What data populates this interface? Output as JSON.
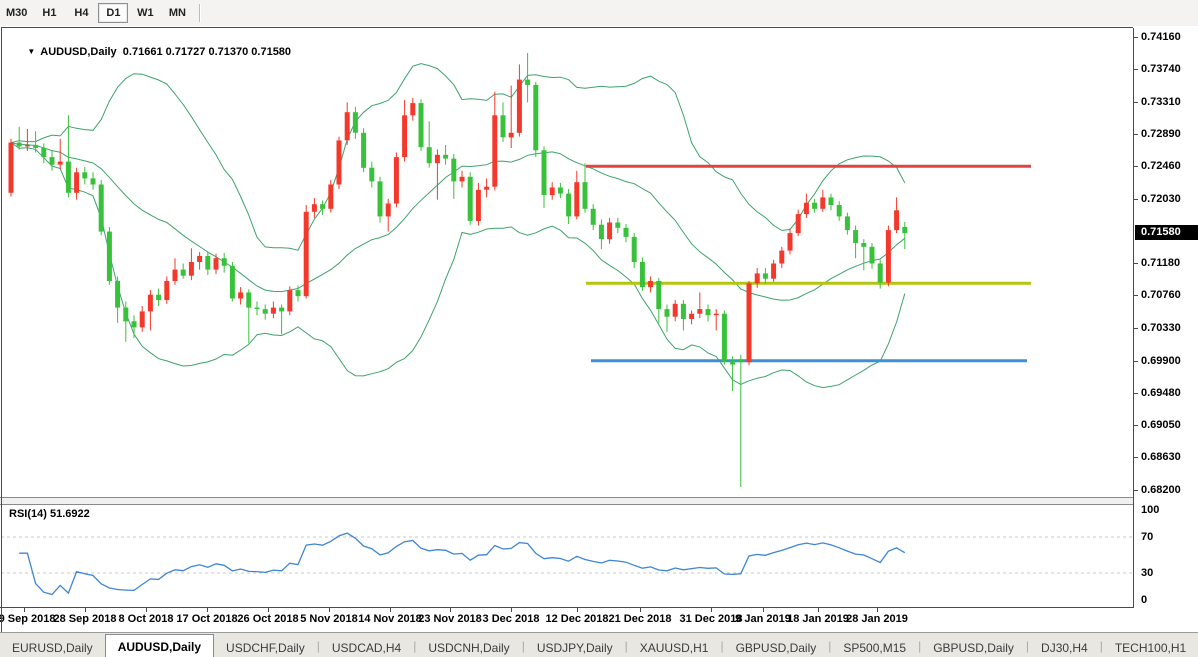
{
  "toolbar": {
    "timeframes": [
      {
        "label": "M30",
        "active": false
      },
      {
        "label": "H1",
        "active": false
      },
      {
        "label": "H4",
        "active": false
      },
      {
        "label": "D1",
        "active": true
      },
      {
        "label": "W1",
        "active": false
      },
      {
        "label": "MN",
        "active": false
      }
    ]
  },
  "symbol_line": {
    "dropdown_icon": "▼",
    "symbol": "AUDUSD,Daily",
    "open": "0.71661",
    "high": "0.71727",
    "low": "0.71370",
    "close": "0.71580"
  },
  "rsi_panel": {
    "label": "RSI(14) 51.6922",
    "axis_labels": [
      100,
      70,
      30,
      0
    ],
    "dashed_levels": [
      70,
      30
    ]
  },
  "tabs": {
    "items": [
      "EURUSD,Daily",
      "AUDUSD,Daily",
      "USDCHF,Daily",
      "USDCAD,H4",
      "USDCNH,Daily",
      "USDJPY,Daily",
      "XAUUSD,H1",
      "GBPUSD,Daily",
      "SP500,M15",
      "GBPUSD,Daily",
      "DJ30,H4",
      "TECH100,H1"
    ],
    "active_index": 1,
    "scroll_left_icon": "◂",
    "scroll_right_icon": "▸"
  },
  "colors": {
    "bull_candle": "#f3392b",
    "bear_candle": "#38c13a",
    "bollinger": "#3da36b",
    "rsi_line": "#3f85d6",
    "rsi_dashed": "#c8c8c8",
    "hline_red": "#e04343",
    "hline_yellow": "#b2c60d",
    "hline_blue": "#3f8fd8",
    "tag_bg": "#000000",
    "tag_text": "#ffffff"
  },
  "chart_data": {
    "type": "candlestick",
    "title": "AUDUSD,Daily",
    "symbol": "AUDUSD",
    "timeframe": "Daily",
    "note": "MT4-style chart; bullish bodies drawn red, bearish bodies drawn green",
    "ylim": [
      0.6811,
      0.7428
    ],
    "price_axis_labels": [
      "0.74160",
      "0.73740",
      "0.73310",
      "0.72890",
      "0.72460",
      "0.72030",
      "0.71180",
      "0.70760",
      "0.70330",
      "0.69900",
      "0.69480",
      "0.69050",
      "0.68630",
      "0.68200"
    ],
    "current_price_tag": "0.71580",
    "date_labels": [
      {
        "text": "19 Sep 2018",
        "x": 24
      },
      {
        "text": "28 Sep 2018",
        "x": 85
      },
      {
        "text": "8 Oct 2018",
        "x": 146
      },
      {
        "text": "17 Oct 2018",
        "x": 207
      },
      {
        "text": "26 Oct 2018",
        "x": 268
      },
      {
        "text": "5 Nov 2018",
        "x": 329
      },
      {
        "text": "14 Nov 2018",
        "x": 390
      },
      {
        "text": "23 Nov 2018",
        "x": 450
      },
      {
        "text": "3 Dec 2018",
        "x": 511
      },
      {
        "text": "12 Dec 2018",
        "x": 577
      },
      {
        "text": "21 Dec 2018",
        "x": 640
      },
      {
        "text": "31 Dec 2018",
        "x": 711
      },
      {
        "text": "9 Jan 2019",
        "x": 763
      },
      {
        "text": "18 Jan 2019",
        "x": 818
      },
      {
        "text": "28 Jan 2019",
        "x": 877
      }
    ],
    "hlines": [
      {
        "name": "resistance-red",
        "price": 0.7246,
        "x1": 585,
        "x2": 1030,
        "color_key": "hline_red"
      },
      {
        "name": "support-yellow",
        "price": 0.7092,
        "x1": 585,
        "x2": 1030,
        "color_key": "hline_yellow"
      },
      {
        "name": "support-blue",
        "price": 0.699,
        "x1": 590,
        "x2": 1026,
        "color_key": "hline_blue"
      }
    ],
    "indicators": {
      "bollinger": {
        "period": 20,
        "deviation": 2
      },
      "rsi": {
        "period": 14,
        "value": 51.6922,
        "range": [
          0,
          100
        ]
      }
    },
    "ohlc": [
      [
        0.7211,
        0.7282,
        0.7206,
        0.7277
      ],
      [
        0.7277,
        0.7298,
        0.7268,
        0.7272
      ],
      [
        0.7272,
        0.7295,
        0.7266,
        0.7274
      ],
      [
        0.7274,
        0.7292,
        0.7264,
        0.727
      ],
      [
        0.727,
        0.7276,
        0.725,
        0.7258
      ],
      [
        0.7258,
        0.7266,
        0.724,
        0.7248
      ],
      [
        0.7248,
        0.7282,
        0.7242,
        0.7252
      ],
      [
        0.7252,
        0.7313,
        0.7205,
        0.7211
      ],
      [
        0.7211,
        0.7244,
        0.7202,
        0.7238
      ],
      [
        0.7238,
        0.7245,
        0.7222,
        0.723
      ],
      [
        0.723,
        0.7238,
        0.7215,
        0.7222
      ],
      [
        0.7222,
        0.7228,
        0.7155,
        0.716
      ],
      [
        0.716,
        0.7166,
        0.709,
        0.7095
      ],
      [
        0.7095,
        0.7101,
        0.704,
        0.706
      ],
      [
        0.706,
        0.7068,
        0.7015,
        0.7042
      ],
      [
        0.7042,
        0.705,
        0.702,
        0.7034
      ],
      [
        0.7034,
        0.7062,
        0.7028,
        0.7055
      ],
      [
        0.7055,
        0.7083,
        0.703,
        0.7077
      ],
      [
        0.7077,
        0.7085,
        0.7062,
        0.707
      ],
      [
        0.707,
        0.7101,
        0.7065,
        0.7095
      ],
      [
        0.7095,
        0.7125,
        0.709,
        0.711
      ],
      [
        0.711,
        0.7118,
        0.7098,
        0.7102
      ],
      [
        0.7102,
        0.7138,
        0.7096,
        0.712
      ],
      [
        0.712,
        0.7133,
        0.711,
        0.7128
      ],
      [
        0.7128,
        0.7133,
        0.7103,
        0.711
      ],
      [
        0.711,
        0.7131,
        0.7104,
        0.7125
      ],
      [
        0.7125,
        0.7132,
        0.7106,
        0.7115
      ],
      [
        0.7115,
        0.712,
        0.7068,
        0.7072
      ],
      [
        0.7072,
        0.7087,
        0.7064,
        0.708
      ],
      [
        0.708,
        0.7084,
        0.7013,
        0.706
      ],
      [
        0.706,
        0.7068,
        0.705,
        0.7058
      ],
      [
        0.7058,
        0.7064,
        0.7044,
        0.7052
      ],
      [
        0.7052,
        0.7068,
        0.7046,
        0.706
      ],
      [
        0.706,
        0.7064,
        0.7025,
        0.7055
      ],
      [
        0.7055,
        0.7088,
        0.705,
        0.7083
      ],
      [
        0.7083,
        0.7089,
        0.7068,
        0.7075
      ],
      [
        0.7075,
        0.7195,
        0.7072,
        0.7186
      ],
      [
        0.7186,
        0.7204,
        0.7178,
        0.7196
      ],
      [
        0.7196,
        0.7201,
        0.7182,
        0.719
      ],
      [
        0.719,
        0.7228,
        0.7185,
        0.7222
      ],
      [
        0.7222,
        0.7285,
        0.7216,
        0.728
      ],
      [
        0.728,
        0.733,
        0.7274,
        0.7317
      ],
      [
        0.7317,
        0.7324,
        0.7282,
        0.729
      ],
      [
        0.729,
        0.7296,
        0.7238,
        0.7244
      ],
      [
        0.7244,
        0.7252,
        0.7218,
        0.7226
      ],
      [
        0.7226,
        0.7232,
        0.7172,
        0.718
      ],
      [
        0.718,
        0.7203,
        0.716,
        0.7197
      ],
      [
        0.7197,
        0.7264,
        0.7192,
        0.7258
      ],
      [
        0.7258,
        0.7333,
        0.7252,
        0.7313
      ],
      [
        0.7313,
        0.7336,
        0.7306,
        0.7329
      ],
      [
        0.7329,
        0.7334,
        0.7266,
        0.7271
      ],
      [
        0.7271,
        0.7305,
        0.7244,
        0.725
      ],
      [
        0.725,
        0.7268,
        0.7202,
        0.7261
      ],
      [
        0.7261,
        0.7274,
        0.7248,
        0.7256
      ],
      [
        0.7256,
        0.7262,
        0.7203,
        0.7226
      ],
      [
        0.7226,
        0.724,
        0.7218,
        0.7232
      ],
      [
        0.7232,
        0.7238,
        0.7169,
        0.7174
      ],
      [
        0.7174,
        0.7224,
        0.7168,
        0.7215
      ],
      [
        0.7215,
        0.723,
        0.7205,
        0.7219
      ],
      [
        0.7219,
        0.7344,
        0.7214,
        0.7313
      ],
      [
        0.7313,
        0.733,
        0.7278,
        0.7284
      ],
      [
        0.7284,
        0.7352,
        0.727,
        0.729
      ],
      [
        0.729,
        0.738,
        0.7285,
        0.736
      ],
      [
        0.736,
        0.7395,
        0.733,
        0.7353
      ],
      [
        0.7353,
        0.7357,
        0.7258,
        0.7267
      ],
      [
        0.7267,
        0.7272,
        0.7191,
        0.7208
      ],
      [
        0.7208,
        0.7225,
        0.7202,
        0.7218
      ],
      [
        0.7218,
        0.7224,
        0.7204,
        0.721
      ],
      [
        0.721,
        0.7216,
        0.717,
        0.718
      ],
      [
        0.718,
        0.724,
        0.7176,
        0.7225
      ],
      [
        0.7225,
        0.725,
        0.7185,
        0.719
      ],
      [
        0.719,
        0.7196,
        0.7162,
        0.7169
      ],
      [
        0.7169,
        0.7176,
        0.7137,
        0.715
      ],
      [
        0.715,
        0.7178,
        0.7144,
        0.7172
      ],
      [
        0.7172,
        0.7178,
        0.7158,
        0.7165
      ],
      [
        0.7165,
        0.717,
        0.7146,
        0.7153
      ],
      [
        0.7153,
        0.7158,
        0.7112,
        0.712
      ],
      [
        0.712,
        0.7126,
        0.7082,
        0.7087
      ],
      [
        0.7087,
        0.7101,
        0.708,
        0.7095
      ],
      [
        0.7095,
        0.7099,
        0.704,
        0.7058
      ],
      [
        0.7058,
        0.7064,
        0.7028,
        0.7048
      ],
      [
        0.7048,
        0.707,
        0.7042,
        0.7065
      ],
      [
        0.7065,
        0.707,
        0.703,
        0.7045
      ],
      [
        0.7045,
        0.7056,
        0.7038,
        0.7052
      ],
      [
        0.7052,
        0.708,
        0.7046,
        0.7058
      ],
      [
        0.7058,
        0.7064,
        0.7042,
        0.705
      ],
      [
        0.705,
        0.7058,
        0.703,
        0.7052
      ],
      [
        0.7052,
        0.7056,
        0.6985,
        0.699
      ],
      [
        0.699,
        0.6996,
        0.695,
        0.6985
      ],
      [
        0.6992,
        0.6998,
        0.6824,
        0.6988
      ],
      [
        0.6988,
        0.7095,
        0.6984,
        0.7092
      ],
      [
        0.7092,
        0.7112,
        0.7086,
        0.7105
      ],
      [
        0.7105,
        0.7112,
        0.7092,
        0.7098
      ],
      [
        0.7098,
        0.7123,
        0.7094,
        0.7118
      ],
      [
        0.7118,
        0.714,
        0.7112,
        0.7135
      ],
      [
        0.7135,
        0.7164,
        0.713,
        0.7158
      ],
      [
        0.7158,
        0.7189,
        0.7154,
        0.7183
      ],
      [
        0.7183,
        0.721,
        0.7178,
        0.7198
      ],
      [
        0.7198,
        0.7203,
        0.7185,
        0.719
      ],
      [
        0.719,
        0.7215,
        0.7186,
        0.7205
      ],
      [
        0.7205,
        0.721,
        0.7188,
        0.7195
      ],
      [
        0.7195,
        0.72,
        0.7174,
        0.718
      ],
      [
        0.718,
        0.7185,
        0.7156,
        0.7162
      ],
      [
        0.7162,
        0.7168,
        0.7125,
        0.7145
      ],
      [
        0.7145,
        0.715,
        0.7109,
        0.714
      ],
      [
        0.714,
        0.7145,
        0.7111,
        0.7118
      ],
      [
        0.7118,
        0.7123,
        0.7085,
        0.7093
      ],
      [
        0.7093,
        0.7168,
        0.7088,
        0.7162
      ],
      [
        0.7162,
        0.7205,
        0.7158,
        0.7188
      ],
      [
        0.71661,
        0.71727,
        0.7137,
        0.7158
      ]
    ]
  }
}
